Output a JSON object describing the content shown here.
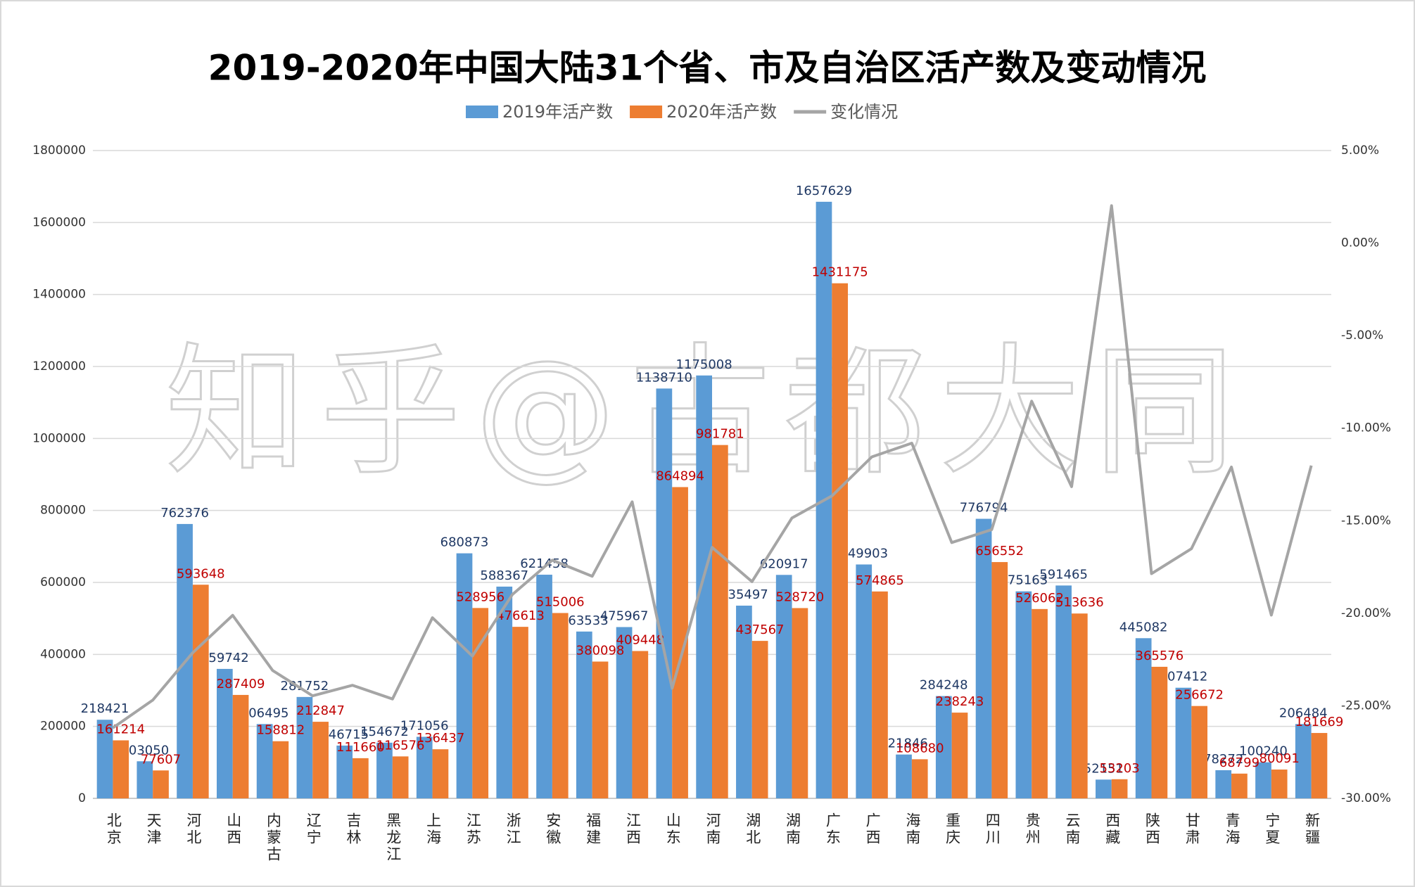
{
  "chart_data": {
    "type": "bar-line",
    "title": "2019-2020年中国大陆31个省、市及自治区活产数及变动情况",
    "watermark": "知乎@古都大同",
    "categories": [
      "北京",
      "天津",
      "河北",
      "山西",
      "内蒙古",
      "辽宁",
      "吉林",
      "黑龙江",
      "上海",
      "江苏",
      "浙江",
      "安徽",
      "福建",
      "江西",
      "山东",
      "河南",
      "湖北",
      "湖南",
      "广东",
      "广西",
      "海南",
      "重庆",
      "四川",
      "贵州",
      "云南",
      "西藏",
      "陕西",
      "甘肃",
      "青海",
      "宁夏",
      "新疆"
    ],
    "series": [
      {
        "name": "2019年活产数",
        "color": "#5b9bd5",
        "label_color": "#1f3864",
        "type": "bar",
        "values": [
          218421,
          103050,
          762376,
          359742,
          206495,
          281752,
          146715,
          154672,
          171056,
          680873,
          588367,
          621458,
          463533,
          475967,
          1138710,
          1175008,
          535497,
          620917,
          1657629,
          649903,
          121846,
          284248,
          776794,
          575163,
          591465,
          52151,
          445082,
          307412,
          78272,
          100240,
          206484
        ]
      },
      {
        "name": "2020年活产数",
        "color": "#ed7d31",
        "label_color": "#c00000",
        "type": "bar",
        "values": [
          161214,
          77607,
          593648,
          287409,
          158812,
          212847,
          111660,
          116576,
          136437,
          528956,
          476613,
          515006,
          380098,
          409448,
          864894,
          981781,
          437567,
          528720,
          1431175,
          574865,
          108680,
          238243,
          656552,
          526062,
          513636,
          53203,
          365576,
          256672,
          68799,
          80091,
          181669
        ]
      },
      {
        "name": "变化情况",
        "color": "#a5a5a5",
        "type": "line",
        "axis": "y2",
        "values": [
          -26.19,
          -24.69,
          -22.13,
          -20.11,
          -23.09,
          -24.46,
          -23.89,
          -24.63,
          -20.24,
          -22.31,
          -18.99,
          -17.13,
          -18.0,
          -13.98,
          -24.05,
          -16.44,
          -18.29,
          -14.85,
          -13.66,
          -11.55,
          -10.81,
          -16.18,
          -15.48,
          -8.54,
          -13.16,
          2.02,
          -17.86,
          -16.51,
          -12.1,
          -20.1,
          -12.02
        ]
      }
    ],
    "ylim": [
      0,
      1800000
    ],
    "yticks": [
      0,
      200000,
      400000,
      600000,
      800000,
      1000000,
      1200000,
      1400000,
      1600000,
      1800000
    ],
    "y2lim": [
      -30,
      5
    ],
    "y2ticks": [
      {
        "value": -30,
        "label": "-30.00%"
      },
      {
        "value": -25,
        "label": "-25.00%"
      },
      {
        "value": -20,
        "label": "-20.00%"
      },
      {
        "value": -15,
        "label": "-15.00%"
      },
      {
        "value": -10,
        "label": "-10.00%"
      },
      {
        "value": -5,
        "label": "-5.00%"
      },
      {
        "value": 0,
        "label": "0.00%"
      },
      {
        "value": 5,
        "label": "5.00%"
      }
    ],
    "grid": true,
    "legend": "top"
  }
}
